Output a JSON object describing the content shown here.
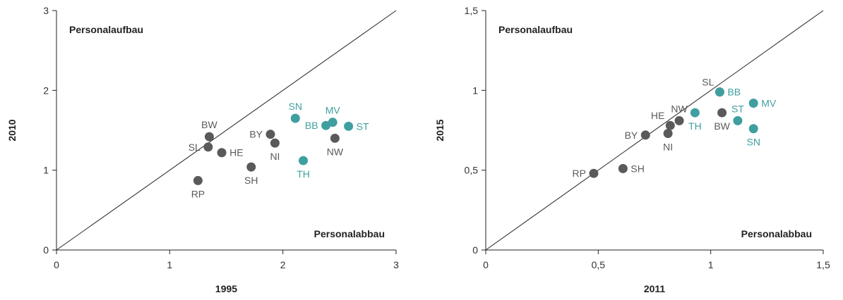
{
  "colors": {
    "east": "#3f9fa0",
    "west": "#5a5a5a",
    "axis": "#222222"
  },
  "chart_data": [
    {
      "type": "scatter",
      "title": "",
      "xlabel": "1995",
      "ylabel": "2010",
      "xlim": [
        0,
        3
      ],
      "ylim": [
        0,
        3
      ],
      "xticks": [
        {
          "v": 0,
          "label": "0"
        },
        {
          "v": 1,
          "label": "1"
        },
        {
          "v": 2,
          "label": "2"
        },
        {
          "v": 3,
          "label": "3"
        }
      ],
      "yticks": [
        {
          "v": 0,
          "label": "0"
        },
        {
          "v": 1,
          "label": "1"
        },
        {
          "v": 2,
          "label": "2"
        },
        {
          "v": 3,
          "label": "3"
        }
      ],
      "diagonal": true,
      "grid": false,
      "region_labels": {
        "above": "Personalaufbau",
        "below": "Personalabbau"
      },
      "points": [
        {
          "label": "BW",
          "x": 1.35,
          "y": 1.42,
          "group": "west",
          "anchor": "above"
        },
        {
          "label": "SL",
          "x": 1.34,
          "y": 1.29,
          "group": "west",
          "anchor": "left"
        },
        {
          "label": "HE",
          "x": 1.46,
          "y": 1.22,
          "group": "west",
          "anchor": "right"
        },
        {
          "label": "RP",
          "x": 1.25,
          "y": 0.87,
          "group": "west",
          "anchor": "below"
        },
        {
          "label": "SH",
          "x": 1.72,
          "y": 1.04,
          "group": "west",
          "anchor": "below"
        },
        {
          "label": "BY",
          "x": 1.89,
          "y": 1.45,
          "group": "west",
          "anchor": "left"
        },
        {
          "label": "NI",
          "x": 1.93,
          "y": 1.34,
          "group": "west",
          "anchor": "below"
        },
        {
          "label": "NW",
          "x": 2.46,
          "y": 1.4,
          "group": "west",
          "anchor": "below"
        },
        {
          "label": "SN",
          "x": 2.11,
          "y": 1.65,
          "group": "east",
          "anchor": "above"
        },
        {
          "label": "MV",
          "x": 2.44,
          "y": 1.6,
          "group": "east",
          "anchor": "above"
        },
        {
          "label": "BB",
          "x": 2.38,
          "y": 1.56,
          "group": "east",
          "anchor": "left"
        },
        {
          "label": "ST",
          "x": 2.58,
          "y": 1.55,
          "group": "east",
          "anchor": "right"
        },
        {
          "label": "TH",
          "x": 2.18,
          "y": 1.12,
          "group": "east",
          "anchor": "below"
        }
      ]
    },
    {
      "type": "scatter",
      "title": "",
      "xlabel": "2011",
      "ylabel": "2015",
      "xlim": [
        0,
        1.5
      ],
      "ylim": [
        0,
        1.5
      ],
      "xticks": [
        {
          "v": 0,
          "label": "0"
        },
        {
          "v": 0.5,
          "label": "0,5"
        },
        {
          "v": 1,
          "label": "1"
        },
        {
          "v": 1.5,
          "label": "1,5"
        }
      ],
      "yticks": [
        {
          "v": 0,
          "label": "0"
        },
        {
          "v": 0.5,
          "label": "0,5"
        },
        {
          "v": 1,
          "label": "1"
        },
        {
          "v": 1.5,
          "label": "1,5"
        }
      ],
      "diagonal": true,
      "grid": false,
      "region_labels": {
        "above": "Personalaufbau",
        "below": "Personalabbau"
      },
      "points": [
        {
          "label": "RP",
          "x": 0.48,
          "y": 0.48,
          "group": "west",
          "anchor": "left"
        },
        {
          "label": "SH",
          "x": 0.61,
          "y": 0.51,
          "group": "west",
          "anchor": "right"
        },
        {
          "label": "BY",
          "x": 0.71,
          "y": 0.72,
          "group": "west",
          "anchor": "left"
        },
        {
          "label": "HE",
          "x": 0.82,
          "y": 0.78,
          "group": "west",
          "anchor": "above-left"
        },
        {
          "label": "NI",
          "x": 0.81,
          "y": 0.73,
          "group": "west",
          "anchor": "below"
        },
        {
          "label": "NW",
          "x": 0.86,
          "y": 0.81,
          "group": "west",
          "anchor": "above"
        },
        {
          "label": "SL",
          "x": 1.04,
          "y": 0.99,
          "group": "west",
          "anchor": "above-left"
        },
        {
          "label": "BW",
          "x": 1.05,
          "y": 0.86,
          "group": "west",
          "anchor": "below"
        },
        {
          "label": "BB",
          "x": 1.04,
          "y": 0.99,
          "group": "east",
          "anchor": "right"
        },
        {
          "label": "TH",
          "x": 0.93,
          "y": 0.86,
          "group": "east",
          "anchor": "below"
        },
        {
          "label": "ST",
          "x": 1.12,
          "y": 0.81,
          "group": "east",
          "anchor": "above"
        },
        {
          "label": "MV",
          "x": 1.19,
          "y": 0.92,
          "group": "east",
          "anchor": "right"
        },
        {
          "label": "SN",
          "x": 1.19,
          "y": 0.76,
          "group": "east",
          "anchor": "below"
        }
      ]
    }
  ]
}
